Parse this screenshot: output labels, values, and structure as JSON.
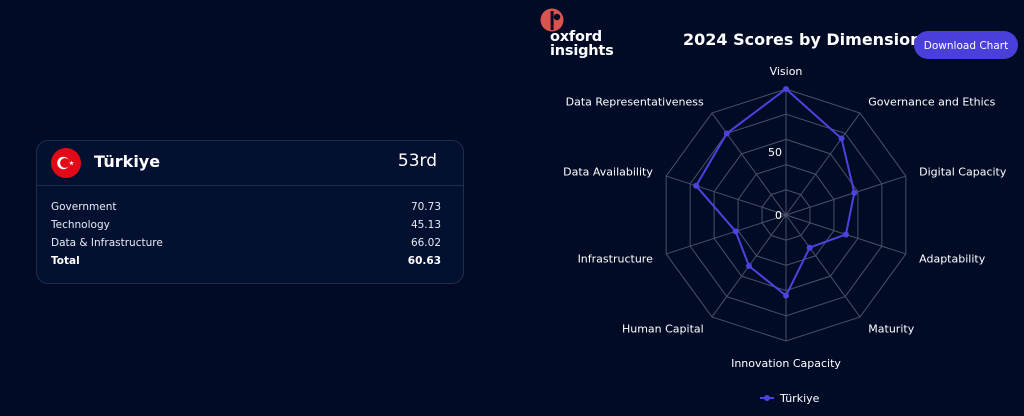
{
  "card": {
    "country": "Türkiye",
    "rank": "53rd",
    "rows": [
      {
        "label": "Government",
        "value": "70.73"
      },
      {
        "label": "Technology",
        "value": "45.13"
      },
      {
        "label": "Data & Infrastructure",
        "value": "66.02"
      },
      {
        "label": "Total",
        "value": "60.63"
      }
    ]
  },
  "header": {
    "logo_line1": "oxford",
    "logo_line2": "insights",
    "chart_title": "2024 Scores by Dimension",
    "download_label": "Download Chart"
  },
  "colors": {
    "background": "#020b26",
    "accent": "#4a3fd9",
    "series": "#4b43e0",
    "grid": "#4a5066",
    "flag_red": "#e30a17",
    "logo_red": "#d9534f"
  },
  "chart_data": {
    "type": "radar",
    "title": "2024 Scores by Dimension",
    "axes": [
      "Vision",
      "Governance and Ethics",
      "Digital Capacity",
      "Adaptability",
      "Maturity",
      "Innovation Capacity",
      "Human Capital",
      "Infrastructure",
      "Data Availability",
      "Data Representativeness"
    ],
    "rlim": [
      0,
      100
    ],
    "ticks": [
      0,
      50
    ],
    "grid": true,
    "legend_position": "bottom",
    "series": [
      {
        "name": "Türkiye",
        "values": [
          100,
          75,
          57,
          50,
          32,
          64,
          50,
          42,
          75,
          80
        ]
      }
    ]
  }
}
